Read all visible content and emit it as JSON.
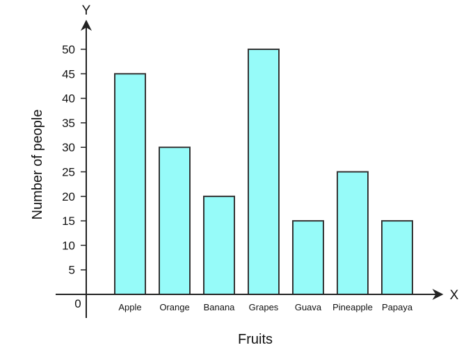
{
  "chart_data": {
    "type": "bar",
    "categories": [
      "Apple",
      "Orange",
      "Banana",
      "Grapes",
      "Guava",
      "Pineapple",
      "Papaya"
    ],
    "values": [
      45,
      30,
      20,
      50,
      15,
      25,
      15
    ],
    "xlabel": "Fruits",
    "ylabel": "Number of people",
    "x_axis_letter": "X",
    "y_axis_letter": "Y",
    "origin_label": "0",
    "yticks": [
      5,
      10,
      15,
      20,
      25,
      30,
      35,
      40,
      45,
      50
    ],
    "ylim": [
      0,
      50
    ],
    "grid": false,
    "legend": "none",
    "colors": {
      "bar_fill": "#96FBF9",
      "bar_stroke": "#333333",
      "axis": "#222222"
    }
  }
}
